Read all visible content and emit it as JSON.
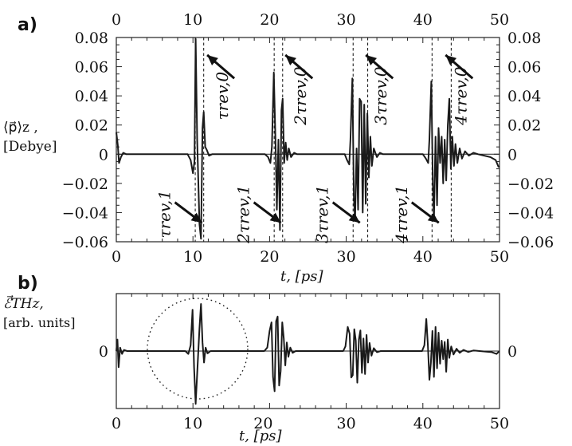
{
  "panel_labels": {
    "a": "a)",
    "b": "b)"
  },
  "labels": {
    "a_ylabel_line1": "⟨p⃗⟩z ,",
    "a_ylabel_line2": "[Debye]",
    "a_xlabel": "t, [ps]",
    "b_ylabel_line1": "ℰ⃗THz,",
    "b_ylabel_line2": "[arb. units]",
    "b_xlabel": "t, [ps]"
  },
  "chart_data": [
    {
      "type": "line",
      "panel": "a",
      "title": "",
      "xlabel": "t, [ps]",
      "ylabel": "⟨p⃗⟩z , [Debye]",
      "xlim": [
        0,
        50
      ],
      "ylim": [
        -0.06,
        0.08
      ],
      "xticks": [
        "0",
        "10",
        "20",
        "30",
        "40",
        "50"
      ],
      "yticks_left": [
        "0.08",
        "0.06",
        "0.04",
        "0.02",
        "0",
        "−0.02",
        "−0.04",
        "−0.06"
      ],
      "yticks_right": [
        "0.08",
        "0.06",
        "0.04",
        "0.02",
        "0",
        "−0.02",
        "−0.04",
        "−0.06"
      ],
      "grid": false,
      "revival_lines_ps": [
        10.3,
        11.4,
        20.6,
        21.7,
        30.9,
        32.8,
        41.2,
        43.7
      ],
      "annotations_top": [
        {
          "t": 12.9,
          "text": "τrev,0"
        },
        {
          "t": 23.1,
          "text": "2τrev,0"
        },
        {
          "t": 33.6,
          "text": "3τrev,0"
        },
        {
          "t": 44.0,
          "text": "4τrev,0"
        }
      ],
      "annotations_bottom": [
        {
          "t": 9.1,
          "text": "τrev,1"
        },
        {
          "t": 19.4,
          "text": "2τrev,1"
        },
        {
          "t": 29.7,
          "text": "3τrev,1"
        },
        {
          "t": 40.0,
          "text": "4τrev,1"
        }
      ],
      "series": [
        {
          "points": [
            [
              0,
              0.015
            ],
            [
              0.2,
              0.006
            ],
            [
              0.35,
              -0.006
            ],
            [
              0.6,
              -0.002
            ],
            [
              0.9,
              0.001
            ],
            [
              1.3,
              0
            ],
            [
              9.3,
              0
            ],
            [
              9.7,
              -0.004
            ],
            [
              10.0,
              -0.013
            ],
            [
              10.2,
              -0.005
            ],
            [
              10.35,
              0.079
            ],
            [
              10.55,
              0.01
            ],
            [
              10.85,
              -0.048
            ],
            [
              11.05,
              -0.058
            ],
            [
              11.25,
              0.018
            ],
            [
              11.4,
              0.029
            ],
            [
              11.6,
              0.005
            ],
            [
              11.8,
              0.003
            ],
            [
              12.1,
              -0.001
            ],
            [
              12.5,
              0
            ],
            [
              19.4,
              0
            ],
            [
              19.8,
              -0.002
            ],
            [
              20.1,
              -0.006
            ],
            [
              20.3,
              0.005
            ],
            [
              20.55,
              0.056
            ],
            [
              20.8,
              0.002
            ],
            [
              20.95,
              -0.038
            ],
            [
              21.15,
              0.01
            ],
            [
              21.35,
              -0.052
            ],
            [
              21.55,
              0.03
            ],
            [
              21.7,
              0.038
            ],
            [
              21.9,
              -0.006
            ],
            [
              22.1,
              0.008
            ],
            [
              22.3,
              -0.004
            ],
            [
              22.5,
              0.004
            ],
            [
              22.8,
              -0.002
            ],
            [
              23.2,
              0.001
            ],
            [
              23.6,
              0
            ],
            [
              29.8,
              0
            ],
            [
              30.1,
              -0.004
            ],
            [
              30.4,
              -0.007
            ],
            [
              30.55,
              0.01
            ],
            [
              30.8,
              0.052
            ],
            [
              31.0,
              -0.03
            ],
            [
              31.15,
              -0.045
            ],
            [
              31.35,
              0.004
            ],
            [
              31.55,
              -0.038
            ],
            [
              31.75,
              0.038
            ],
            [
              31.95,
              0.036
            ],
            [
              32.15,
              -0.04
            ],
            [
              32.35,
              0.034
            ],
            [
              32.55,
              -0.034
            ],
            [
              32.75,
              0.028
            ],
            [
              32.95,
              -0.016
            ],
            [
              33.15,
              0.012
            ],
            [
              33.35,
              -0.008
            ],
            [
              33.6,
              0.004
            ],
            [
              34.0,
              -0.002
            ],
            [
              34.4,
              0.001
            ],
            [
              34.8,
              0
            ],
            [
              40.0,
              0
            ],
            [
              40.4,
              -0.003
            ],
            [
              40.7,
              -0.006
            ],
            [
              40.85,
              0.01
            ],
            [
              41.1,
              0.05
            ],
            [
              41.3,
              -0.02
            ],
            [
              41.45,
              -0.045
            ],
            [
              41.65,
              0.012
            ],
            [
              41.85,
              -0.035
            ],
            [
              42.05,
              0.018
            ],
            [
              42.25,
              -0.006
            ],
            [
              42.45,
              0.012
            ],
            [
              42.65,
              -0.02
            ],
            [
              42.85,
              0.01
            ],
            [
              43.05,
              -0.018
            ],
            [
              43.25,
              0.02
            ],
            [
              43.45,
              0.038
            ],
            [
              43.65,
              -0.01
            ],
            [
              43.85,
              0.012
            ],
            [
              44.05,
              -0.008
            ],
            [
              44.25,
              0.007
            ],
            [
              44.5,
              -0.006
            ],
            [
              44.8,
              0.004
            ],
            [
              45.1,
              -0.003
            ],
            [
              45.5,
              0.002
            ],
            [
              46.0,
              -0.001
            ],
            [
              46.6,
              0.001
            ],
            [
              47.2,
              0
            ],
            [
              48.8,
              -0.002
            ],
            [
              49.5,
              -0.004
            ],
            [
              49.9,
              -0.009
            ]
          ]
        }
      ]
    },
    {
      "type": "line",
      "panel": "b",
      "title": "",
      "xlabel": "t, [ps]",
      "ylabel": "ℰ⃗THz, [arb. units]",
      "xlim": [
        0,
        50
      ],
      "ylim": [
        -1,
        1
      ],
      "xticks": [
        "0",
        "10",
        "20",
        "30",
        "40",
        "50"
      ],
      "yticks_left": [
        "0"
      ],
      "yticks_right": [
        "0"
      ],
      "grid": false,
      "highlight_circle_center_t": 10.6,
      "series": [
        {
          "points": [
            [
              0,
              0
            ],
            [
              0.15,
              0.2
            ],
            [
              0.3,
              -0.28
            ],
            [
              0.5,
              0.06
            ],
            [
              0.75,
              -0.05
            ],
            [
              1.0,
              0.02
            ],
            [
              1.4,
              0
            ],
            [
              9.0,
              0
            ],
            [
              9.4,
              -0.05
            ],
            [
              9.7,
              0.1
            ],
            [
              9.95,
              0.72
            ],
            [
              10.15,
              -0.28
            ],
            [
              10.35,
              -0.92
            ],
            [
              10.55,
              -0.4
            ],
            [
              10.85,
              0.4
            ],
            [
              11.05,
              0.82
            ],
            [
              11.25,
              0.15
            ],
            [
              11.45,
              -0.2
            ],
            [
              11.65,
              0.06
            ],
            [
              11.9,
              -0.04
            ],
            [
              12.3,
              0
            ],
            [
              19.3,
              0
            ],
            [
              19.7,
              0.06
            ],
            [
              20.0,
              0.35
            ],
            [
              20.25,
              0.5
            ],
            [
              20.45,
              -0.45
            ],
            [
              20.65,
              -0.7
            ],
            [
              20.85,
              0.52
            ],
            [
              21.05,
              0.6
            ],
            [
              21.25,
              -0.6
            ],
            [
              21.45,
              -0.35
            ],
            [
              21.65,
              0.5
            ],
            [
              21.85,
              0.22
            ],
            [
              22.05,
              -0.25
            ],
            [
              22.25,
              0.15
            ],
            [
              22.45,
              -0.1
            ],
            [
              22.7,
              0.06
            ],
            [
              23.0,
              -0.03
            ],
            [
              23.4,
              0
            ],
            [
              29.6,
              0
            ],
            [
              29.9,
              0.08
            ],
            [
              30.2,
              0.42
            ],
            [
              30.45,
              0.3
            ],
            [
              30.65,
              -0.46
            ],
            [
              30.85,
              -0.42
            ],
            [
              31.05,
              0.38
            ],
            [
              31.25,
              0.18
            ],
            [
              31.45,
              -0.55
            ],
            [
              31.65,
              0.2
            ],
            [
              31.85,
              0.36
            ],
            [
              32.05,
              -0.38
            ],
            [
              32.25,
              0.22
            ],
            [
              32.45,
              -0.4
            ],
            [
              32.65,
              0.28
            ],
            [
              32.85,
              -0.2
            ],
            [
              33.05,
              0.14
            ],
            [
              33.3,
              -0.08
            ],
            [
              33.6,
              0.05
            ],
            [
              34.0,
              -0.02
            ],
            [
              34.5,
              0
            ],
            [
              39.9,
              0
            ],
            [
              40.2,
              0.1
            ],
            [
              40.45,
              0.56
            ],
            [
              40.65,
              0.1
            ],
            [
              40.85,
              -0.5
            ],
            [
              41.05,
              -0.2
            ],
            [
              41.25,
              0.35
            ],
            [
              41.45,
              -0.45
            ],
            [
              41.65,
              0.42
            ],
            [
              41.85,
              -0.3
            ],
            [
              42.05,
              0.32
            ],
            [
              42.25,
              -0.22
            ],
            [
              42.45,
              0.18
            ],
            [
              42.65,
              -0.14
            ],
            [
              42.85,
              0.16
            ],
            [
              43.05,
              -0.36
            ],
            [
              43.25,
              0.2
            ],
            [
              43.45,
              -0.12
            ],
            [
              43.7,
              0.08
            ],
            [
              44.0,
              -0.06
            ],
            [
              44.4,
              0.04
            ],
            [
              44.8,
              -0.03
            ],
            [
              45.3,
              0.02
            ],
            [
              45.9,
              -0.015
            ],
            [
              46.6,
              0.01
            ],
            [
              47.4,
              0
            ],
            [
              49.0,
              -0.02
            ],
            [
              49.6,
              -0.05
            ],
            [
              50.0,
              0
            ]
          ]
        }
      ]
    }
  ]
}
